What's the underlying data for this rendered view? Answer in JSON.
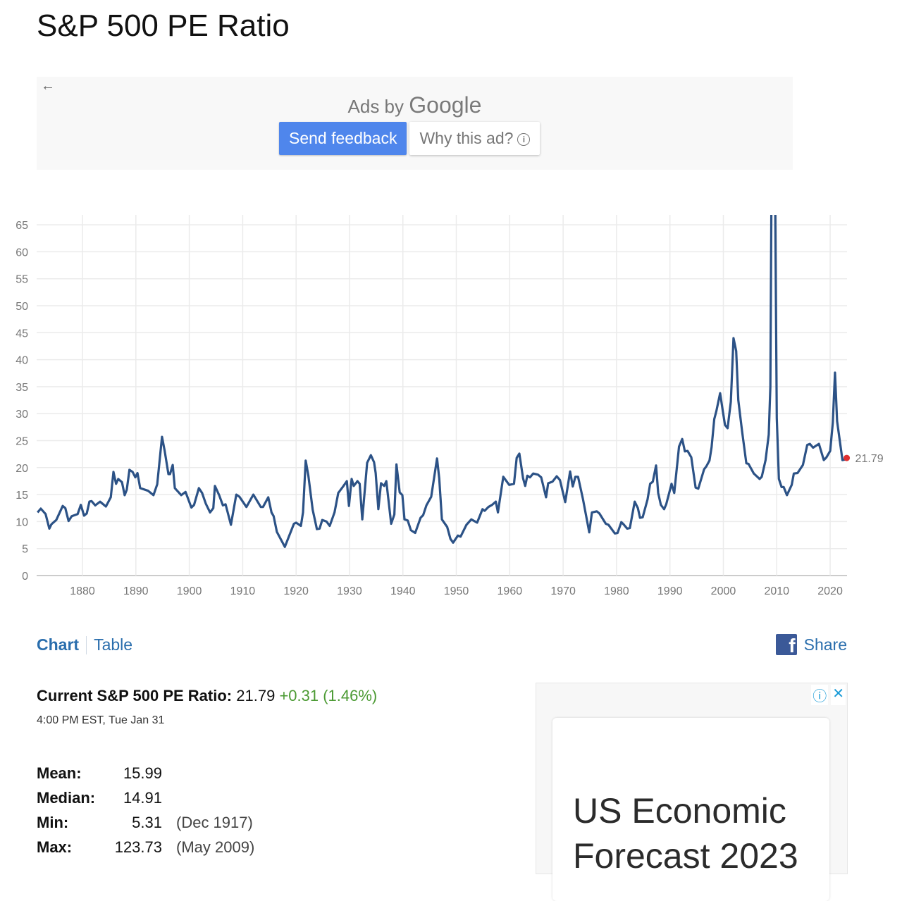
{
  "page": {
    "title": "S&P 500 PE Ratio"
  },
  "top_ad": {
    "back_icon": "arrow-left-icon",
    "ads_by": "Ads by",
    "google": "Google",
    "send_feedback": "Send feedback",
    "why_this_ad": "Why this ad?",
    "info_icon": "info-circle-icon"
  },
  "chart_data": {
    "type": "line",
    "title": "",
    "xlabel": "",
    "ylabel": "",
    "xlim": [
      1871,
      2023
    ],
    "ylim": [
      0,
      67
    ],
    "grid": true,
    "x_ticks": [
      "1880",
      "1890",
      "1900",
      "1910",
      "1920",
      "1930",
      "1940",
      "1950",
      "1960",
      "1970",
      "1980",
      "1990",
      "2000",
      "2010",
      "2020"
    ],
    "y_ticks": [
      "0",
      "5",
      "10",
      "15",
      "20",
      "25",
      "30",
      "35",
      "40",
      "45",
      "50",
      "55",
      "60",
      "65"
    ],
    "line_color": "#2c5286",
    "marker_color": "#e03030",
    "last_value_label": "21.79",
    "series": [
      {
        "x": [
          1871.6,
          1872.2,
          1873.1,
          1873.8,
          1874.2,
          1875.1,
          1876.3,
          1876.8,
          1877.4,
          1878,
          1879.1,
          1879.7,
          1880.3,
          1880.8,
          1881.3,
          1881.7,
          1882.4,
          1883.3,
          1884.4,
          1885.3,
          1885.8,
          1886.3,
          1886.7,
          1887.4,
          1887.9,
          1888.3,
          1888.8,
          1889.4,
          1889.9,
          1890.3,
          1890.8,
          1892.3,
          1893.3,
          1894,
          1894.9,
          1895.4,
          1896.1,
          1896.4,
          1896.9,
          1897.3,
          1898.5,
          1899.3,
          1900.4,
          1900.9,
          1901.8,
          1902.4,
          1903.1,
          1903.9,
          1904.5,
          1904.8,
          1905.6,
          1906.3,
          1906.8,
          1907.8,
          1908.8,
          1909.4,
          1910.7,
          1912,
          1913.4,
          1913.8,
          1914.8,
          1915.4,
          1915.8,
          1916.4,
          1917.9,
          1919.6,
          1920,
          1920.9,
          1921.3,
          1921.8,
          1922.3,
          1923.1,
          1923.9,
          1924.4,
          1924.9,
          1925.7,
          1926.3,
          1927.2,
          1927.9,
          1928.8,
          1929.5,
          1929.9,
          1930.4,
          1930.8,
          1931.5,
          1931.9,
          1932.4,
          1933.3,
          1934,
          1934.6,
          1934.9,
          1935.4,
          1935.9,
          1936.5,
          1936.9,
          1937.8,
          1938.4,
          1938.8,
          1939.4,
          1939.9,
          1940.3,
          1940.9,
          1941.5,
          1942.3,
          1943.3,
          1943.8,
          1944.4,
          1945.3,
          1946.4,
          1946.8,
          1947.3,
          1948.3,
          1948.9,
          1949.4,
          1950.3,
          1950.8,
          1951.9,
          1952.8,
          1953.9,
          1954.9,
          1955.3,
          1956,
          1956.7,
          1957.4,
          1957.8,
          1958.8,
          1959.9,
          1960.8,
          1961.3,
          1961.8,
          1962.5,
          1962.9,
          1963.3,
          1963.8,
          1964.4,
          1965.3,
          1965.9,
          1966.8,
          1967.2,
          1968,
          1968.8,
          1969.4,
          1970.4,
          1971.3,
          1971.8,
          1972.3,
          1972.8,
          1973.7,
          1974.9,
          1975.4,
          1976.3,
          1976.8,
          1978,
          1978.5,
          1979.7,
          1980.2,
          1980.9,
          1981.3,
          1982,
          1982.5,
          1983.4,
          1984,
          1984.4,
          1984.9,
          1985.8,
          1986.3,
          1986.8,
          1987.4,
          1987.8,
          1988.3,
          1988.9,
          1989.3,
          1990.3,
          1990.8,
          1991.7,
          1992.3,
          1992.8,
          1993.3,
          1994,
          1994.8,
          1995.3,
          1996.4,
          1996.8,
          1997.4,
          1997.8,
          1998.3,
          1998.7,
          1999.4,
          1999.9,
          2000.3,
          2000.8,
          2001.4,
          2001.9,
          2002.4,
          2002.8,
          2003.5,
          2004.3,
          2004.7,
          2005.7,
          2006.8,
          2007.2,
          2007.9,
          2008.5,
          2008.8,
          2009.3,
          2010,
          2010.4,
          2010.9,
          2011.3,
          2011.9,
          2012.8,
          2013.2,
          2013.9,
          2014.9,
          2015.7,
          2016.2,
          2016.8,
          2017.9,
          2018.8,
          2019.3,
          2020,
          2020.5,
          2020.9,
          2021.3,
          2022.3,
          2022.8,
          2023.1
        ],
        "y": [
          11.7,
          12.4,
          11.4,
          8.7,
          9.5,
          10.3,
          12.9,
          12.5,
          10.1,
          11,
          11.4,
          13.1,
          11.1,
          11.5,
          13.7,
          13.8,
          13,
          13.7,
          12.8,
          14.5,
          19.2,
          17,
          17.9,
          17.3,
          14.9,
          15.9,
          19.6,
          19.2,
          18.2,
          19,
          16.2,
          15.7,
          14.9,
          16.9,
          25.7,
          23.1,
          18.8,
          18.8,
          20.5,
          16.2,
          14.9,
          15.5,
          12.6,
          13.1,
          16.2,
          15.3,
          13.3,
          11.7,
          12.5,
          16.6,
          14.9,
          13,
          13.2,
          9.4,
          15,
          14.6,
          12.7,
          15,
          12.7,
          12.7,
          14.5,
          11.7,
          11,
          8.1,
          5.31,
          9.6,
          9.8,
          9.2,
          11.7,
          21.3,
          18.5,
          12.2,
          8.6,
          8.7,
          10.3,
          10,
          9.2,
          11.7,
          15.3,
          16.5,
          17.5,
          12.9,
          17.9,
          16.6,
          17.5,
          17,
          10.4,
          20.9,
          22.3,
          21,
          19,
          12.3,
          17.1,
          16.6,
          17.5,
          9.6,
          11.3,
          20.6,
          15.4,
          14.9,
          10.4,
          10.2,
          8.4,
          7.9,
          10.7,
          11.2,
          13,
          14.6,
          21.7,
          18,
          10.4,
          9,
          6.8,
          6.1,
          7.4,
          7.2,
          9.4,
          10.4,
          9.8,
          12.3,
          12,
          12.7,
          13.1,
          13.7,
          11.7,
          18.3,
          16.8,
          17,
          21.8,
          22.6,
          18,
          16.6,
          18.5,
          18.2,
          18.9,
          18.7,
          18.2,
          14.5,
          17.1,
          17.4,
          18.4,
          17.7,
          13.6,
          19.3,
          16.5,
          18.3,
          18.3,
          14.2,
          8,
          11.7,
          11.9,
          11.5,
          9.6,
          9.4,
          7.8,
          7.9,
          9.9,
          9.5,
          8.7,
          8.8,
          13.7,
          12.5,
          10.7,
          10.8,
          14.1,
          17,
          17.4,
          20.4,
          15.3,
          13.1,
          12.3,
          13.2,
          17,
          15.3,
          23.9,
          25.3,
          23,
          23.1,
          21.9,
          16.3,
          16.1,
          19.7,
          20.2,
          21.3,
          23.8,
          29,
          30.5,
          33.8,
          30.5,
          27.9,
          27.3,
          32.2,
          44,
          41.6,
          32.5,
          26.8,
          20.8,
          20.7,
          18.9,
          17.9,
          18.3,
          21.4,
          26.1,
          35,
          123.73,
          29.2,
          17.9,
          16.4,
          16.4,
          14.9,
          16.8,
          18.9,
          19,
          20.5,
          24.2,
          24.4,
          23.7,
          24.4,
          21.4,
          21.9,
          23.1,
          28.3,
          37.6,
          28.6,
          21.4,
          21.5,
          21.79
        ]
      }
    ]
  },
  "tabs": [
    {
      "label": "Chart",
      "active": true
    },
    {
      "label": "Table",
      "active": false
    }
  ],
  "share": {
    "icon": "facebook-icon",
    "label": "Share"
  },
  "current": {
    "label": "Current S&P 500 PE Ratio:",
    "value": "21.79",
    "change": "+0.31 (1.46%)",
    "change_color": "#4b9a33",
    "timestamp": "4:00 PM EST, Tue Jan 31"
  },
  "stats": [
    {
      "label": "Mean:",
      "value": "15.99",
      "when": ""
    },
    {
      "label": "Median:",
      "value": "14.91",
      "when": ""
    },
    {
      "label": "Min:",
      "value": "5.31",
      "when": "(Dec 1917)"
    },
    {
      "label": "Max:",
      "value": "123.73",
      "when": "(May 2009)"
    }
  ],
  "side_ad": {
    "info_icon": "info-circle-icon",
    "close_icon": "close-icon",
    "headline": "US Economic Forecast 2023"
  }
}
